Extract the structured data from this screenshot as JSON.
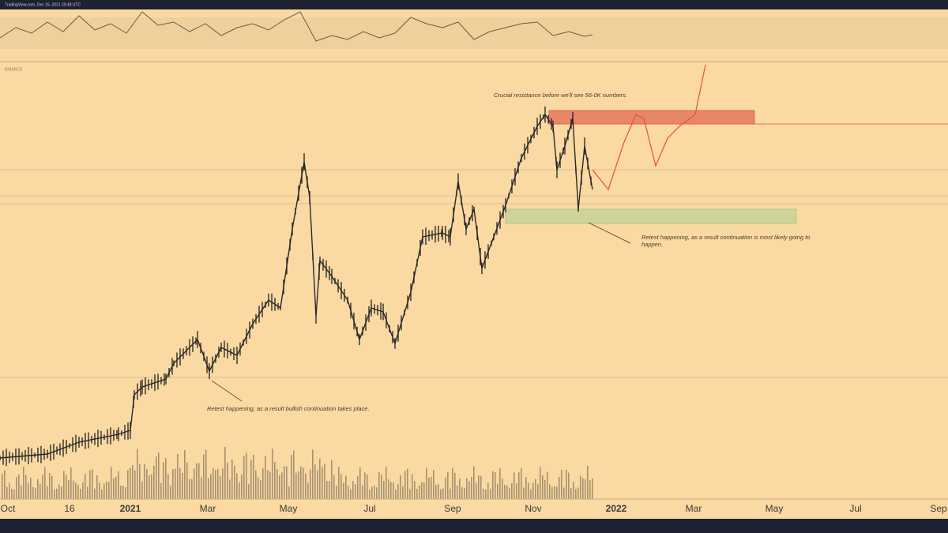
{
  "header": {
    "watermark": "TradingView.com, Dec 15, 2021 20:48 UTC",
    "symbol": "BINANCE"
  },
  "annotations": {
    "resistance": "Crucial resistance before we'll see 56-0K numbers.",
    "retest_recent": "Retest happening, as a result continuation is most likely going to happen.",
    "retest_early": "Retest happening, as a result bullish continuation takes place."
  },
  "x_axis_labels": [
    "Oct",
    "16",
    "2021",
    "Mar",
    "May",
    "Jul",
    "Sep",
    "Nov",
    "2022",
    "Mar",
    "May",
    "Jul",
    "Sep"
  ]
}
